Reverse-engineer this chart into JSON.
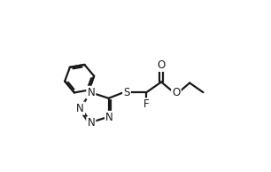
{
  "bg_color": "#ffffff",
  "line_color": "#1a1a1a",
  "line_width": 1.6,
  "font_size": 8.5,
  "figsize": [
    3.06,
    1.94
  ],
  "dpi": 100,
  "xlim": [
    0.0,
    1.0
  ],
  "ylim": [
    0.0,
    1.0
  ]
}
